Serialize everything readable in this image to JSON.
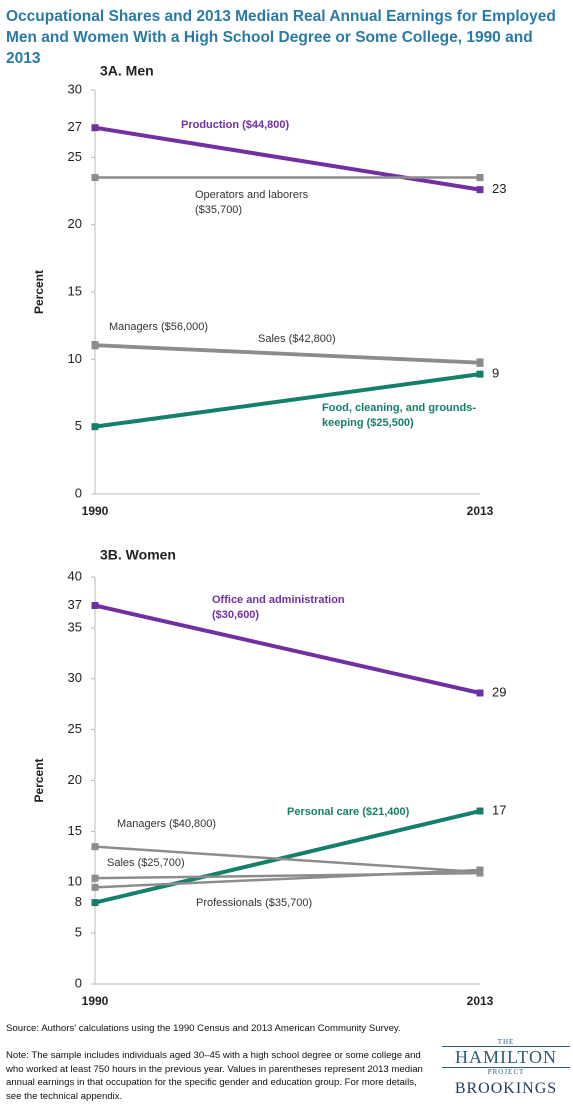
{
  "title": "Occupational Shares and 2013 Median Real Annual Earnings for Employed Men and Women With a High School Degree or Some College, 1990 and 2013",
  "chart_data": [
    {
      "type": "line",
      "title": "3A. Men",
      "y_label": "Percent",
      "categories": [
        "1990",
        "2013"
      ],
      "ylim": [
        0,
        30
      ],
      "yticks": [
        0,
        5,
        10,
        15,
        20,
        25,
        30
      ],
      "series": [
        {
          "name": "Production ($44,800)",
          "color": "#7030a0",
          "values": [
            27.2,
            22.6
          ],
          "value_labels": [
            "27",
            "23"
          ]
        },
        {
          "name": "Operators and laborers ($35,700)",
          "color": "#8c8c8c",
          "values": [
            23.5,
            23.5
          ]
        },
        {
          "name": "Managers ($56,000)",
          "color": "#8c8c8c",
          "values": [
            11.1,
            9.8
          ]
        },
        {
          "name": "Sales ($42,800)",
          "color": "#8c8c8c",
          "values": [
            11.0,
            9.7
          ]
        },
        {
          "name": "Food, cleaning, and grounds-keeping ($25,500)",
          "color": "#14806b",
          "values": [
            5.0,
            8.9
          ],
          "value_labels": [
            null,
            "9"
          ]
        }
      ]
    },
    {
      "type": "line",
      "title": "3B. Women",
      "y_label": "Percent",
      "categories": [
        "1990",
        "2013"
      ],
      "ylim": [
        0,
        40
      ],
      "yticks": [
        0,
        5,
        10,
        15,
        20,
        25,
        30,
        35,
        40
      ],
      "series": [
        {
          "name": "Office and administration ($30,600)",
          "color": "#7030a0",
          "values": [
            37.2,
            28.6
          ],
          "value_labels": [
            "37",
            "29"
          ]
        },
        {
          "name": "Personal care ($21,400)",
          "color": "#14806b",
          "values": [
            8.0,
            17.0
          ],
          "value_labels": [
            "8",
            "17"
          ]
        },
        {
          "name": "Managers ($40,800)",
          "color": "#8c8c8c",
          "values": [
            13.5,
            11.0
          ]
        },
        {
          "name": "Sales ($25,700)",
          "color": "#8c8c8c",
          "values": [
            10.4,
            10.9
          ]
        },
        {
          "name": "Professionals ($35,700)",
          "color": "#8c8c8c",
          "values": [
            9.5,
            11.2
          ]
        }
      ]
    }
  ],
  "source": "Source: Authors' calculations using the 1990 Census and 2013 American Community Survey.",
  "note": "Note: The sample includes individuals aged 30–45 with a high school degree or some college and who worked at least 750 hours in the previous year. Values in parentheses represent 2013 median annual earnings in that occupation for the specific gender and education group. For more details, see the technical appendix.",
  "logo": {
    "top": "THE",
    "name": "HAMILTON",
    "bottom": "PROJECT",
    "org": "BROOKINGS"
  }
}
